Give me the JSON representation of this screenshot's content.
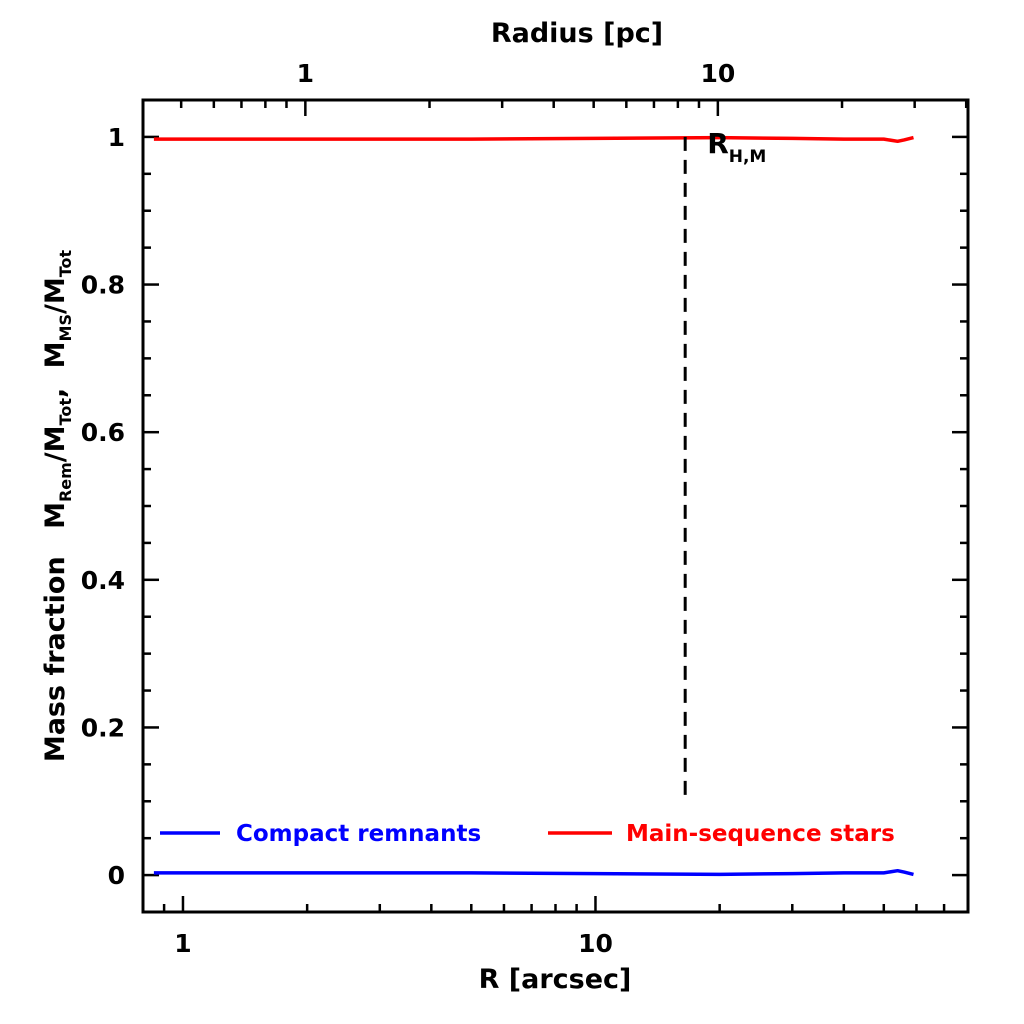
{
  "chart_data": {
    "type": "line",
    "xscale": "log",
    "xlabel": "R [arcsec]",
    "ylabel": "Mass fraction",
    "ylabel_sub": "M",
    "ylabel_ratio": {
      "rem_base": "M",
      "rem_sub": "Rem",
      "tot_base": "/M",
      "tot_sub": "Tot",
      "sep": ",",
      "ms_base": "M",
      "ms_sub": "MS",
      "tot2_base": "/M",
      "tot2_sub": "Tot"
    },
    "top_xlabel": "Radius [pc]",
    "xlim": [
      0.8,
      80
    ],
    "ylim": [
      -0.05,
      1.05
    ],
    "x_ticks": [
      1,
      10
    ],
    "x_tick_labels": [
      "1",
      "10"
    ],
    "y_ticks": [
      0,
      0.2,
      0.4,
      0.6,
      0.8,
      1
    ],
    "y_tick_labels": [
      "0",
      "0.2",
      "0.4",
      "0.6",
      "0.8",
      "1"
    ],
    "top_ticks_arcsec": [
      1.98,
      19.8
    ],
    "top_tick_labels": [
      "1",
      "10"
    ],
    "vline": {
      "x": 16.5,
      "style": "dashed",
      "y_range": [
        0.1,
        1.0
      ],
      "label_base": "R",
      "label_sub": "H,M"
    },
    "series": [
      {
        "name": "Compact remnants",
        "color": "#0000ff",
        "x": [
          0.85,
          1,
          2,
          5,
          10,
          20,
          30,
          40,
          50,
          54,
          56,
          59
        ],
        "y": [
          0.003,
          0.003,
          0.003,
          0.003,
          0.002,
          0.001,
          0.002,
          0.003,
          0.003,
          0.006,
          0.004,
          0.001
        ]
      },
      {
        "name": "Main-sequence stars",
        "color": "#ff0000",
        "x": [
          0.85,
          1,
          2,
          5,
          10,
          20,
          30,
          40,
          50,
          54,
          56,
          59
        ],
        "y": [
          0.997,
          0.997,
          0.997,
          0.997,
          0.998,
          0.999,
          0.998,
          0.997,
          0.997,
          0.994,
          0.996,
          0.999
        ]
      }
    ],
    "legend_position": "bottom"
  }
}
